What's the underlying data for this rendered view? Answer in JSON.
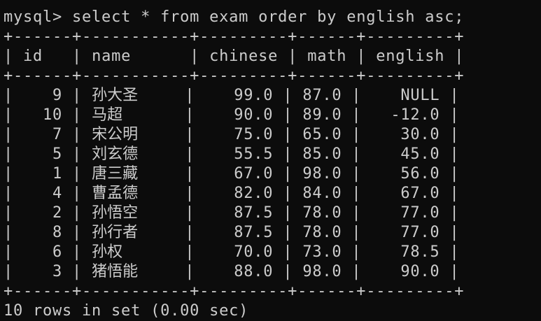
{
  "terminal": {
    "prompt": "mysql> ",
    "command": "select * from exam order by english asc;",
    "border": "+------+-----------+---------+------+---------+",
    "columns": [
      "id",
      "name",
      "chinese",
      "math",
      "english"
    ],
    "rows": [
      {
        "id": "9",
        "name": "孙大圣",
        "chinese": "99.0",
        "math": "87.0",
        "english": "NULL"
      },
      {
        "id": "10",
        "name": "马超",
        "chinese": "90.0",
        "math": "89.0",
        "english": "-12.0"
      },
      {
        "id": "7",
        "name": "宋公明",
        "chinese": "75.0",
        "math": "65.0",
        "english": "30.0"
      },
      {
        "id": "5",
        "name": "刘玄德",
        "chinese": "55.5",
        "math": "85.0",
        "english": "45.0"
      },
      {
        "id": "1",
        "name": "唐三藏",
        "chinese": "67.0",
        "math": "98.0",
        "english": "56.0"
      },
      {
        "id": "4",
        "name": "曹孟德",
        "chinese": "82.0",
        "math": "84.0",
        "english": "67.0"
      },
      {
        "id": "2",
        "name": "孙悟空",
        "chinese": "87.5",
        "math": "78.0",
        "english": "77.0"
      },
      {
        "id": "8",
        "name": "孙行者",
        "chinese": "87.5",
        "math": "78.0",
        "english": "77.0"
      },
      {
        "id": "6",
        "name": "孙权",
        "chinese": "70.0",
        "math": "73.0",
        "english": "78.5"
      },
      {
        "id": "3",
        "name": "猪悟能",
        "chinese": "88.0",
        "math": "98.0",
        "english": "90.0"
      }
    ],
    "footer": "10 rows in set (0.00 sec)",
    "colors": {
      "background": "#0c0c0c",
      "text": "#cccccc"
    }
  }
}
